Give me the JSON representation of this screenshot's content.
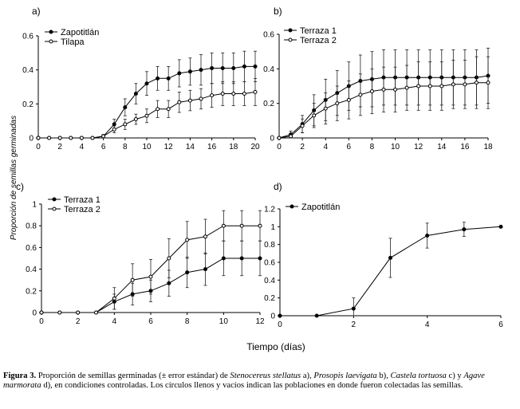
{
  "y_axis_label": "Proporción de semillas germinadas",
  "x_axis_label": "Tiempo (días)",
  "caption": {
    "label": "Figura 3.",
    "t1": " Proporción de semillas germinadas (± error estándar) de ",
    "sp1": "Stenocereus stellatus",
    "t2": " a), ",
    "sp2": "Prosopis laevigata",
    "t3": " b), ",
    "sp3": "Castela tortuosa",
    "t4": " c) y ",
    "sp4": "Agave marmorata",
    "t5": " d), en condiciones controladas. Los círculos llenos y vacíos indican las poblaciones en donde fueron colectadas las semillas."
  },
  "chart_data": [
    {
      "panel": "a)",
      "type": "line",
      "xlim": [
        0,
        20
      ],
      "ylim": [
        0,
        0.6
      ],
      "xticks": [
        0,
        2,
        4,
        6,
        8,
        10,
        12,
        14,
        16,
        18,
        20
      ],
      "yticks": [
        0,
        0.2,
        0.4,
        0.6
      ],
      "xticklabels": [
        "0",
        "2",
        "4",
        "6",
        "8",
        "10",
        "12",
        "14",
        "16",
        "18",
        "20"
      ],
      "yticklabels": [
        "0",
        "0.2",
        "0.4",
        "0.6"
      ],
      "series": [
        {
          "name": "Zapotitlán",
          "marker": "filled",
          "x": [
            0,
            1,
            2,
            3,
            4,
            5,
            6,
            7,
            8,
            9,
            10,
            11,
            12,
            13,
            14,
            15,
            16,
            17,
            18,
            19,
            20
          ],
          "y": [
            0,
            0,
            0,
            0,
            0,
            0,
            0.01,
            0.08,
            0.18,
            0.26,
            0.32,
            0.35,
            0.35,
            0.38,
            0.39,
            0.4,
            0.41,
            0.41,
            0.41,
            0.42,
            0.42
          ],
          "err": [
            0,
            0,
            0,
            0,
            0,
            0,
            0.01,
            0.03,
            0.05,
            0.06,
            0.07,
            0.07,
            0.07,
            0.08,
            0.08,
            0.09,
            0.09,
            0.09,
            0.09,
            0.09,
            0.09
          ]
        },
        {
          "name": "Tilapa",
          "marker": "open",
          "x": [
            0,
            1,
            2,
            3,
            4,
            5,
            6,
            7,
            8,
            9,
            10,
            11,
            12,
            13,
            14,
            15,
            16,
            17,
            18,
            19,
            20
          ],
          "y": [
            0,
            0,
            0,
            0,
            0,
            0,
            0.01,
            0.05,
            0.08,
            0.11,
            0.13,
            0.17,
            0.17,
            0.21,
            0.22,
            0.23,
            0.25,
            0.26,
            0.26,
            0.26,
            0.27
          ],
          "err": [
            0,
            0,
            0,
            0,
            0,
            0,
            0.01,
            0.02,
            0.03,
            0.03,
            0.04,
            0.05,
            0.05,
            0.06,
            0.06,
            0.06,
            0.07,
            0.07,
            0.07,
            0.07,
            0.08
          ]
        }
      ]
    },
    {
      "panel": "b)",
      "type": "line",
      "xlim": [
        0,
        18
      ],
      "ylim": [
        0,
        0.6
      ],
      "xticks": [
        0,
        2,
        4,
        6,
        8,
        10,
        12,
        14,
        16,
        18
      ],
      "yticks": [
        0,
        0.2,
        0.4,
        0.6
      ],
      "xticklabels": [
        "0",
        "2",
        "4",
        "6",
        "8",
        "10",
        "12",
        "14",
        "16",
        "18"
      ],
      "yticklabels": [
        "0",
        "0.2",
        "0.4",
        "0.6"
      ],
      "series": [
        {
          "name": "Terraza 1",
          "marker": "filled",
          "x": [
            0,
            1,
            2,
            3,
            4,
            5,
            6,
            7,
            8,
            9,
            10,
            11,
            12,
            13,
            14,
            15,
            16,
            17,
            18
          ],
          "y": [
            0,
            0.02,
            0.08,
            0.16,
            0.22,
            0.26,
            0.3,
            0.33,
            0.34,
            0.35,
            0.35,
            0.35,
            0.35,
            0.35,
            0.35,
            0.35,
            0.35,
            0.35,
            0.36
          ],
          "err": [
            0,
            0.02,
            0.05,
            0.09,
            0.12,
            0.13,
            0.14,
            0.15,
            0.16,
            0.16,
            0.16,
            0.16,
            0.16,
            0.16,
            0.16,
            0.16,
            0.16,
            0.16,
            0.16
          ]
        },
        {
          "name": "Terraza 2",
          "marker": "open",
          "x": [
            0,
            1,
            2,
            3,
            4,
            5,
            6,
            7,
            8,
            9,
            10,
            11,
            12,
            13,
            14,
            15,
            16,
            17,
            18
          ],
          "y": [
            0,
            0.01,
            0.07,
            0.13,
            0.17,
            0.2,
            0.22,
            0.25,
            0.27,
            0.28,
            0.28,
            0.29,
            0.3,
            0.3,
            0.3,
            0.31,
            0.31,
            0.32,
            0.32
          ],
          "err": [
            0,
            0.01,
            0.04,
            0.07,
            0.09,
            0.1,
            0.11,
            0.12,
            0.13,
            0.13,
            0.13,
            0.13,
            0.14,
            0.14,
            0.14,
            0.14,
            0.14,
            0.15,
            0.15
          ]
        }
      ]
    },
    {
      "panel": "c)",
      "type": "line",
      "xlim": [
        0,
        12
      ],
      "ylim": [
        0,
        1
      ],
      "xticks": [
        0,
        2,
        4,
        6,
        8,
        10,
        12
      ],
      "yticks": [
        0,
        0.2,
        0.4,
        0.6,
        0.8,
        1
      ],
      "xticklabels": [
        "0",
        "2",
        "4",
        "6",
        "8",
        "10",
        "12"
      ],
      "yticklabels": [
        "0",
        "0.2",
        "0.4",
        "0.6",
        "0.8",
        "1"
      ],
      "series": [
        {
          "name": "Terraza 1",
          "marker": "filled",
          "x": [
            0,
            1,
            2,
            3,
            4,
            5,
            6,
            7,
            8,
            9,
            10,
            11,
            12
          ],
          "y": [
            0,
            0,
            0,
            0,
            0.1,
            0.17,
            0.2,
            0.27,
            0.37,
            0.4,
            0.5,
            0.5,
            0.5
          ],
          "err": [
            0,
            0,
            0,
            0,
            0.07,
            0.1,
            0.1,
            0.12,
            0.14,
            0.15,
            0.16,
            0.16,
            0.16
          ]
        },
        {
          "name": "Terraza 2",
          "marker": "open",
          "x": [
            0,
            1,
            2,
            3,
            4,
            5,
            6,
            7,
            8,
            9,
            10,
            11,
            12
          ],
          "y": [
            0,
            0,
            0,
            0,
            0.13,
            0.3,
            0.33,
            0.5,
            0.67,
            0.7,
            0.8,
            0.8,
            0.8
          ],
          "err": [
            0,
            0,
            0,
            0,
            0.1,
            0.15,
            0.16,
            0.18,
            0.17,
            0.16,
            0.14,
            0.14,
            0.14
          ]
        }
      ]
    },
    {
      "panel": "d)",
      "type": "line",
      "xlim": [
        0,
        6
      ],
      "ylim": [
        0,
        1.2
      ],
      "xticks": [
        0,
        2,
        4,
        6
      ],
      "yticks": [
        0,
        0.2,
        0.4,
        0.6,
        0.8,
        1,
        1.2
      ],
      "xticklabels": [
        "0",
        "2",
        "4",
        "6"
      ],
      "yticklabels": [
        "0",
        "0.2",
        "0.4",
        "0.6",
        "0.8",
        "1",
        "1.2"
      ],
      "series": [
        {
          "name": "Zapotitlán",
          "marker": "filled",
          "x": [
            0,
            1,
            2,
            3,
            4,
            5,
            6
          ],
          "y": [
            0,
            0,
            0.08,
            0.65,
            0.9,
            0.97,
            1.0
          ],
          "err": [
            0,
            0,
            0.12,
            0.22,
            0.14,
            0.08,
            0
          ]
        }
      ]
    }
  ]
}
